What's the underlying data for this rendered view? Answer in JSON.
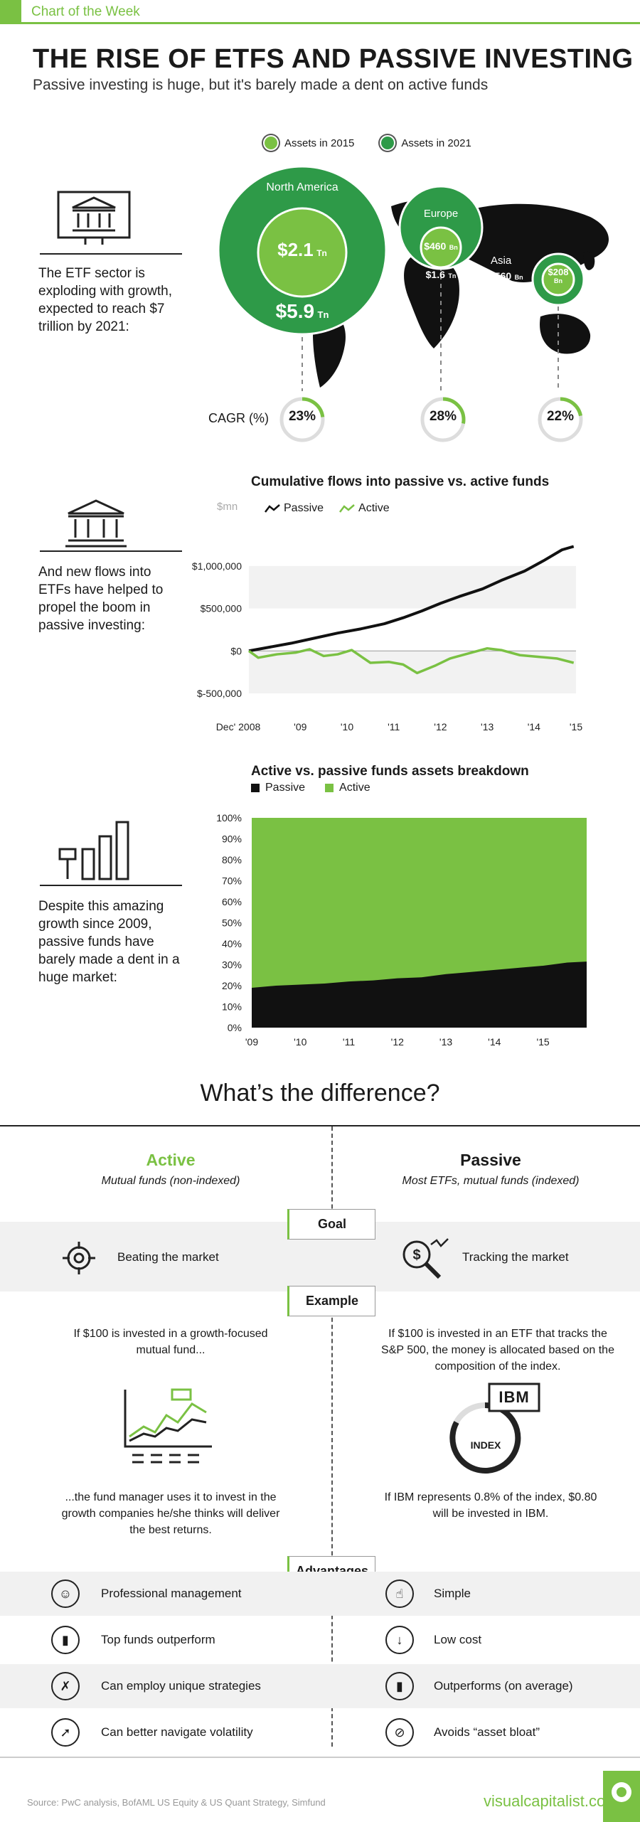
{
  "header": {
    "kicker": "Chart of the Week",
    "title": "THE RISE OF ETFS AND PASSIVE INVESTING",
    "subtitle": "Passive investing is huge, but it's barely made a dent on active funds"
  },
  "map_section": {
    "legend": [
      "Assets in 2015",
      "Assets in 2021"
    ],
    "side_text": "The ETF sector is exploding with growth, expected to reach $7 trillion by 2021:",
    "cagr_label": "CAGR (%)",
    "regions": [
      {
        "name": "North America",
        "v2015": "$2.1",
        "u2015": "Tn",
        "v2021": "$5.9",
        "u2021": "Tn",
        "cagr": "23%",
        "cagr_value": 23
      },
      {
        "name": "Europe",
        "v2015": "$460",
        "u2015": "Bn",
        "v2021": "$1.6",
        "u2021": "Tn",
        "cagr": "28%",
        "cagr_value": 28
      },
      {
        "name": "Asia",
        "v2015": "$208",
        "u2015": "Bn",
        "v2021": "$560",
        "u2021": "Bn",
        "cagr": "22%",
        "cagr_value": 22
      }
    ]
  },
  "flows_section": {
    "side_text": "And new flows into ETFs have helped to propel the boom in passive investing:"
  },
  "breakdown_section": {
    "side_text": "Despite this amazing growth since 2009, passive funds have barely made a dent in a huge market:"
  },
  "chart_data": [
    {
      "type": "line",
      "title": "Cumulative flows into passive vs. active funds",
      "ylabel": "$mn",
      "x_ticks": [
        "Dec' 2008",
        "'09",
        "'10",
        "'11",
        "'12",
        "'13",
        "'14",
        "'15"
      ],
      "y_ticks": [
        "$1,000,000",
        "$500,000",
        "$0",
        "$-500,000"
      ],
      "ylim": [
        -500000,
        1300000
      ],
      "xlim": [
        2008.9,
        2015.9
      ],
      "legend": "top",
      "series": [
        {
          "name": "Passive",
          "color": "#111111",
          "x": [
            2008.9,
            2009.3,
            2009.8,
            2010.3,
            2010.8,
            2011.3,
            2011.8,
            2012.2,
            2012.6,
            2013.0,
            2013.4,
            2013.9,
            2014.3,
            2014.8,
            2015.2,
            2015.6,
            2015.85
          ],
          "y": [
            0,
            40000,
            90000,
            150000,
            210000,
            260000,
            320000,
            390000,
            470000,
            560000,
            640000,
            730000,
            830000,
            940000,
            1060000,
            1190000,
            1230000
          ]
        },
        {
          "name": "Active",
          "color": "#7ac143",
          "x": [
            2008.9,
            2009.1,
            2009.5,
            2009.9,
            2010.2,
            2010.5,
            2010.8,
            2011.1,
            2011.5,
            2011.9,
            2012.2,
            2012.5,
            2012.9,
            2013.2,
            2013.6,
            2014.0,
            2014.3,
            2014.7,
            2015.1,
            2015.5,
            2015.85
          ],
          "y": [
            0,
            -80000,
            -40000,
            -20000,
            20000,
            -60000,
            -40000,
            10000,
            -140000,
            -130000,
            -160000,
            -260000,
            -170000,
            -90000,
            -30000,
            30000,
            10000,
            -50000,
            -70000,
            -90000,
            -140000
          ]
        }
      ]
    },
    {
      "type": "area",
      "title": "Active vs. passive funds assets breakdown",
      "x_ticks": [
        "'09",
        "'10",
        "'11",
        "'12",
        "'13",
        "'14",
        "'15"
      ],
      "y_ticks": [
        "100%",
        "90%",
        "80%",
        "70%",
        "60%",
        "50%",
        "40%",
        "30%",
        "20%",
        "10%",
        "0%"
      ],
      "ylim": [
        0,
        100
      ],
      "xlim": [
        2009,
        2015.9
      ],
      "legend": "top",
      "series": [
        {
          "name": "Passive",
          "color": "#111111",
          "x": [
            2009,
            2009.5,
            2010,
            2010.5,
            2011,
            2011.5,
            2012,
            2012.5,
            2013,
            2013.5,
            2014,
            2014.5,
            2015,
            2015.5,
            2015.9
          ],
          "y": [
            19,
            20,
            20.5,
            21,
            22,
            22.5,
            23.5,
            24,
            25.5,
            26.5,
            27.5,
            28.5,
            29.5,
            31,
            31.5
          ]
        },
        {
          "name": "Active",
          "color": "#7ac143",
          "x": [
            2009,
            2015.9
          ],
          "y": [
            100,
            100
          ]
        }
      ]
    }
  ],
  "difference": {
    "title": "What’s the difference?",
    "active": {
      "heading": "Active",
      "sub": "Mutual funds (non-indexed)"
    },
    "passive": {
      "heading": "Passive",
      "sub": "Most ETFs, mutual funds (indexed)"
    },
    "goal_pill": "Goal",
    "goal_active": "Beating the market",
    "goal_passive": "Tracking the market",
    "example_pill": "Example",
    "example_active_top": "If $100 is invested in a growth-focused mutual fund...",
    "example_passive_top": "If $100 is invested in an ETF that tracks the S&P 500, the money is allocated based on the composition of the index.",
    "ibm_label": "IBM",
    "index_label": "INDEX",
    "example_active_bottom": "...the fund manager uses it to invest in the growth companies he/she thinks will deliver the best returns.",
    "example_passive_bottom": "If IBM represents 0.8% of the index, $0.80 will be invested in IBM.",
    "advantages_pill": "Advantages",
    "advantages_active": [
      "Professional management",
      "Top funds outperform",
      "Can employ unique strategies",
      "Can better navigate volatility"
    ],
    "advantages_passive": [
      "Simple",
      "Low cost",
      "Outperforms (on average)",
      "Avoids “asset bloat”"
    ]
  },
  "footer": {
    "source": "Source: PwC analysis, BofAML US Equity & US Quant Strategy, Simfund",
    "brand": "visualcapitalist.com"
  },
  "colors": {
    "accent": "#7ac143",
    "dark_green": "#2e9a48",
    "text": "#1a1a1a"
  }
}
